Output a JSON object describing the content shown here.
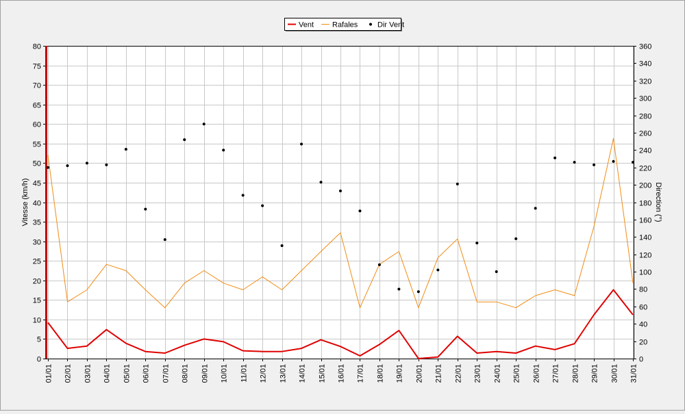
{
  "chart_data": {
    "type": "line",
    "categories": [
      "01/01",
      "02/01",
      "03/01",
      "04/01",
      "05/01",
      "06/01",
      "07/01",
      "08/01",
      "09/01",
      "10/01",
      "11/01",
      "12/01",
      "13/01",
      "14/01",
      "15/01",
      "16/01",
      "17/01",
      "18/01",
      "19/01",
      "20/01",
      "21/01",
      "22/01",
      "23/01",
      "24/01",
      "25/01",
      "26/01",
      "27/01",
      "28/01",
      "29/01",
      "30/01",
      "31/01"
    ],
    "ylabel": "Vitesse (km/h)",
    "y2label": "Direction (°)",
    "ylim": [
      0,
      80
    ],
    "y2lim": [
      0,
      360
    ],
    "yticks": [
      "0",
      "5",
      "10",
      "15",
      "20",
      "25",
      "30",
      "35",
      "40",
      "45",
      "50",
      "55",
      "60",
      "65",
      "70",
      "75",
      "80"
    ],
    "y2ticks": [
      "0",
      "20",
      "40",
      "60",
      "80",
      "100",
      "120",
      "140",
      "160",
      "180",
      "200",
      "220",
      "240",
      "260",
      "280",
      "300",
      "320",
      "340",
      "360"
    ],
    "grid": true,
    "legend_position": "top-center",
    "series": [
      {
        "name": "Vent",
        "axis": "left",
        "style": "line",
        "color": "#e00000",
        "values": [
          9.2,
          2.6,
          3.2,
          7.4,
          3.9,
          1.8,
          1.4,
          3.4,
          5.0,
          4.3,
          2.0,
          1.8,
          1.8,
          2.6,
          4.8,
          3.1,
          0.7,
          3.6,
          7.2,
          0.0,
          0.4,
          5.7,
          1.4,
          1.8,
          1.4,
          3.2,
          2.3,
          3.8,
          11.2,
          17.6,
          11.2
        ]
      },
      {
        "name": "Rafales",
        "axis": "left",
        "style": "line",
        "color": "#f08c14",
        "values": [
          52.0,
          14.5,
          17.6,
          24.1,
          22.5,
          17.6,
          13.0,
          19.3,
          22.5,
          19.3,
          17.6,
          20.9,
          17.6,
          22.5,
          27.4,
          32.2,
          13.0,
          24.1,
          27.4,
          13.0,
          25.8,
          30.6,
          14.5,
          14.5,
          13.0,
          16.1,
          17.6,
          16.1,
          33.8,
          56.3,
          19.3
        ]
      },
      {
        "name": "Dir Vent",
        "axis": "right",
        "style": "dots",
        "color": "#000000",
        "values": [
          220,
          222,
          225,
          223,
          241,
          172,
          137,
          252,
          270,
          240,
          188,
          176,
          130,
          247,
          203,
          193,
          170,
          108,
          80,
          77,
          102,
          201,
          133,
          100,
          138,
          173,
          231,
          226,
          223,
          227,
          226
        ]
      }
    ]
  }
}
